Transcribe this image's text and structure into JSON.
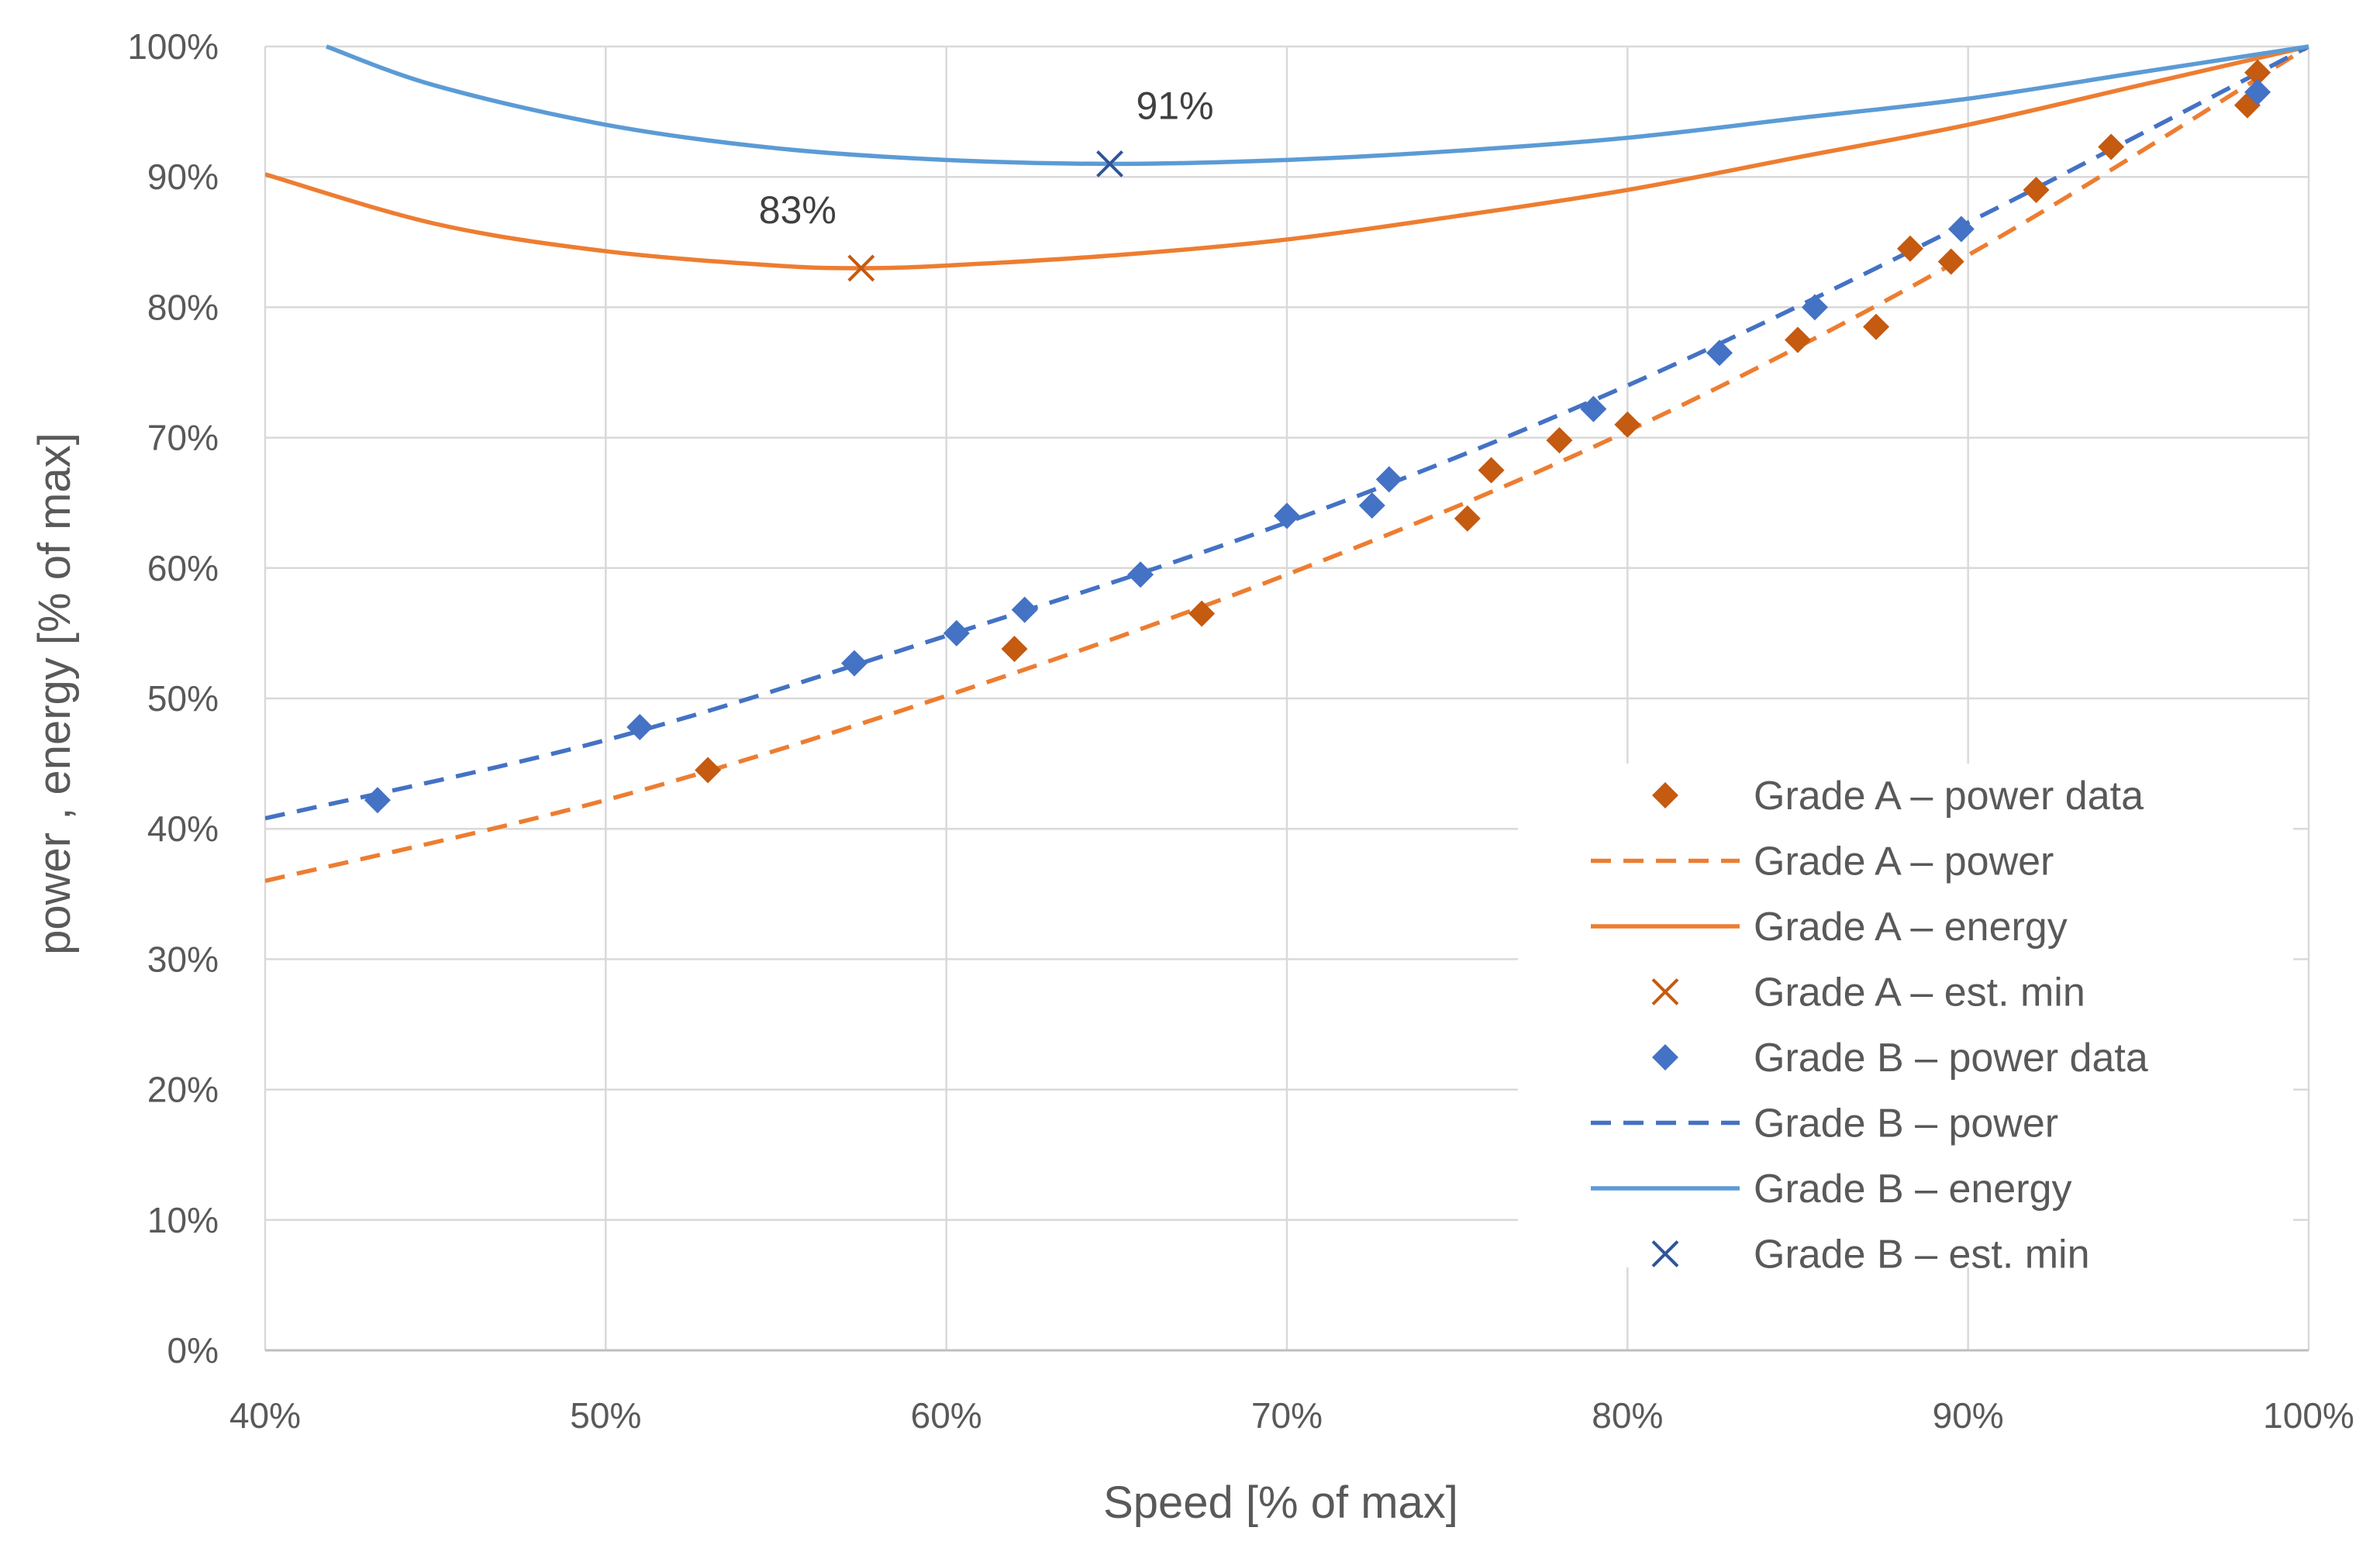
{
  "chart_data": {
    "type": "scatter",
    "title": "",
    "xlabel": "Speed [% of max]",
    "ylabel": "power , energy [% of max]",
    "xlim": [
      40,
      100
    ],
    "ylim": [
      0,
      100
    ],
    "x_ticks": [
      40,
      50,
      60,
      70,
      80,
      90,
      100
    ],
    "y_ticks": [
      0,
      10,
      20,
      30,
      40,
      50,
      60,
      70,
      80,
      90,
      100
    ],
    "x_tick_labels": [
      "40%",
      "50%",
      "60%",
      "70%",
      "80%",
      "90%",
      "100%"
    ],
    "y_tick_labels": [
      "0%",
      "10%",
      "20%",
      "30%",
      "40%",
      "50%",
      "60%",
      "70%",
      "80%",
      "90%",
      "100%"
    ],
    "grid": true,
    "legend_position": "lower-right",
    "colors": {
      "grade_a": "#c55a11",
      "grade_a_line": "#ed7d31",
      "grade_b": "#4472c4",
      "grade_b_line": "#5b9bd5"
    },
    "series": [
      {
        "name": "Grade A – power data",
        "kind": "markers",
        "marker": "diamond",
        "color": "#c55a11",
        "x": [
          53,
          62,
          67.5,
          75.3,
          76,
          78,
          80,
          85,
          87.3,
          88.3,
          89.5,
          92,
          94.2,
          98.2,
          98.5
        ],
        "y": [
          44.5,
          53.8,
          56.5,
          63.8,
          67.5,
          69.8,
          71,
          77.5,
          78.5,
          84.5,
          83.5,
          89,
          92.3,
          95.5,
          98
        ]
      },
      {
        "name": "Grade A – power",
        "kind": "line",
        "dash": "dashed",
        "color": "#ed7d31",
        "x": [
          40,
          50,
          60,
          70,
          80,
          90,
          100
        ],
        "y": [
          36,
          42.2,
          50.2,
          59.5,
          70.5,
          84,
          100
        ]
      },
      {
        "name": "Grade A – energy",
        "kind": "line",
        "dash": "solid",
        "color": "#ed7d31",
        "x": [
          40,
          45,
          50,
          55,
          57.5,
          60,
          65,
          70,
          75,
          80,
          85,
          90,
          95,
          100
        ],
        "y": [
          90.2,
          86.4,
          84.3,
          83.2,
          83,
          83.2,
          84,
          85.2,
          87,
          89,
          91.5,
          94,
          97,
          100
        ]
      },
      {
        "name": "Grade A – est. min",
        "kind": "markers",
        "marker": "x",
        "color": "#c55a11",
        "x": [
          57.5
        ],
        "y": [
          83
        ],
        "labels": [
          "83%"
        ]
      },
      {
        "name": "Grade B – power data",
        "kind": "markers",
        "marker": "diamond",
        "color": "#4472c4",
        "x": [
          43.3,
          51,
          57.3,
          60.3,
          62.3,
          65.7,
          70,
          72.5,
          73,
          79,
          82.7,
          85.5,
          89.8,
          98.5
        ],
        "y": [
          42.2,
          47.8,
          52.7,
          55,
          56.8,
          59.5,
          64,
          64.8,
          66.8,
          72.2,
          76.5,
          80,
          86,
          96.5
        ]
      },
      {
        "name": "Grade B – power",
        "kind": "line",
        "dash": "dashed",
        "color": "#4472c4",
        "x": [
          40,
          50,
          60,
          70,
          80,
          90,
          100
        ],
        "y": [
          40.8,
          46.8,
          54.8,
          63.5,
          74,
          86.5,
          100
        ]
      },
      {
        "name": "Grade B – energy",
        "kind": "line",
        "dash": "solid",
        "color": "#5b9bd5",
        "x": [
          41.8,
          45,
          50,
          55,
          60,
          65,
          70,
          75,
          80,
          85,
          90,
          95,
          100
        ],
        "y": [
          100,
          97,
          94,
          92.2,
          91.3,
          91,
          91.3,
          92,
          93,
          94.5,
          96,
          98,
          100
        ]
      },
      {
        "name": "Grade B – est. min",
        "kind": "markers",
        "marker": "x",
        "color": "#2f5597",
        "x": [
          64.8
        ],
        "y": [
          91
        ],
        "labels": [
          "91%"
        ]
      }
    ]
  }
}
